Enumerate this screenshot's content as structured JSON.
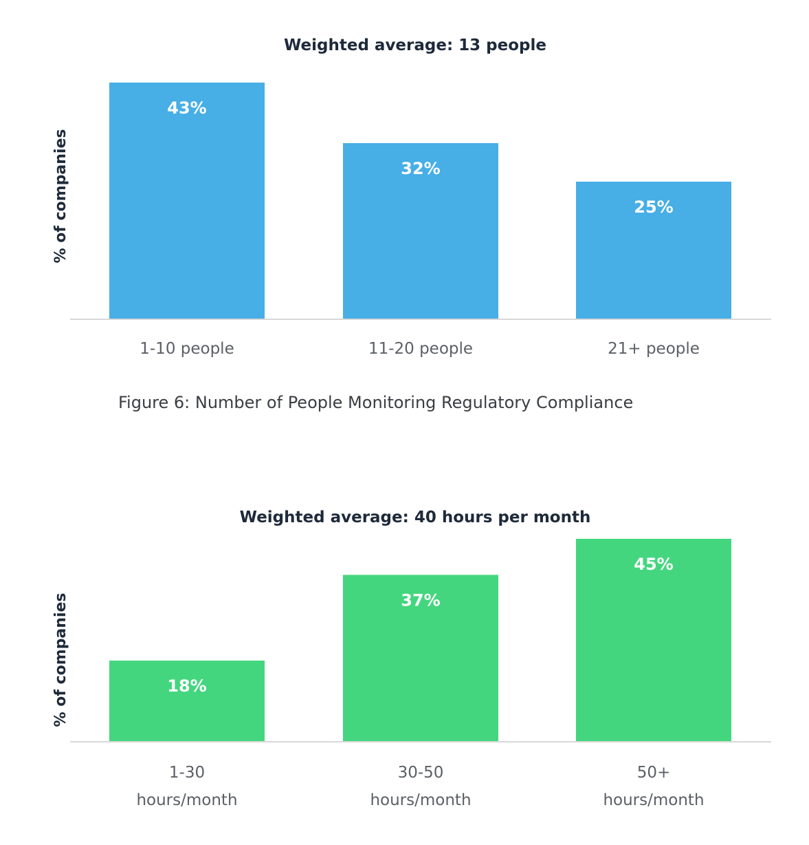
{
  "chart_data": [
    {
      "type": "bar",
      "title": "Weighted average: 13 people",
      "ylabel": "% of companies",
      "xlabel": "",
      "categories": [
        [
          "1-10 people"
        ],
        [
          "11-20 people"
        ],
        [
          "21+ people"
        ]
      ],
      "values": [
        43,
        32,
        25
      ],
      "value_labels": [
        "43%",
        "32%",
        "25%"
      ],
      "ylim": [
        0,
        43
      ],
      "color": "#47aee6",
      "caption": "Figure 6: Number of People Monitoring Regulatory Compliance",
      "grid": false
    },
    {
      "type": "bar",
      "title": "Weighted average: 40 hours per month",
      "ylabel": "% of companies",
      "xlabel": "",
      "categories": [
        [
          "1-30",
          "hours/month"
        ],
        [
          "30-50",
          "hours/month"
        ],
        [
          "50+",
          "hours/month"
        ]
      ],
      "values": [
        18,
        37,
        45
      ],
      "value_labels": [
        "18%",
        "37%",
        "45%"
      ],
      "ylim": [
        0,
        45
      ],
      "color": "#44d67f",
      "grid": false
    }
  ]
}
